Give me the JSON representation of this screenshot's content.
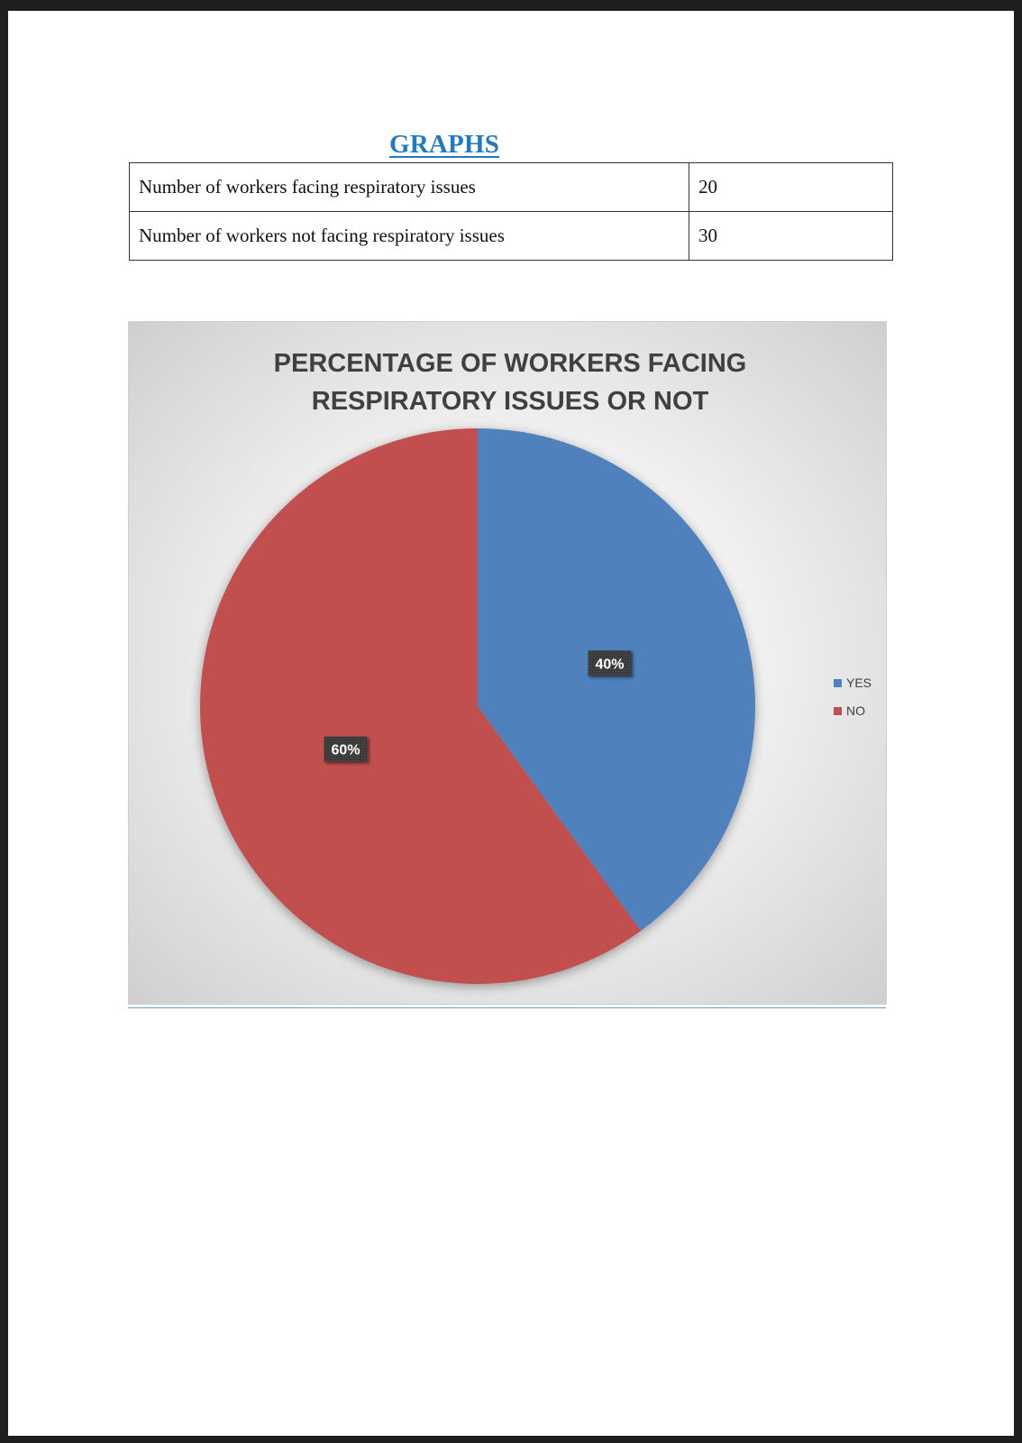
{
  "heading": "GRAPHS",
  "table": {
    "rows": [
      {
        "label": "Number of workers facing respiratory issues",
        "value": "20"
      },
      {
        "label": "Number of workers not facing respiratory issues",
        "value": "30"
      }
    ]
  },
  "chart_data": {
    "type": "pie",
    "title_lines": [
      "PERCENTAGE OF WORKERS FACING",
      "RESPIRATORY ISSUES OR NOT"
    ],
    "categories": [
      "YES",
      "NO"
    ],
    "values": [
      40,
      60
    ],
    "labels": [
      "40%",
      "60%"
    ],
    "colors": [
      "#4f81bd",
      "#c0504d"
    ],
    "legend_position": "right",
    "start_angle_deg": 0,
    "direction": "clockwise"
  }
}
